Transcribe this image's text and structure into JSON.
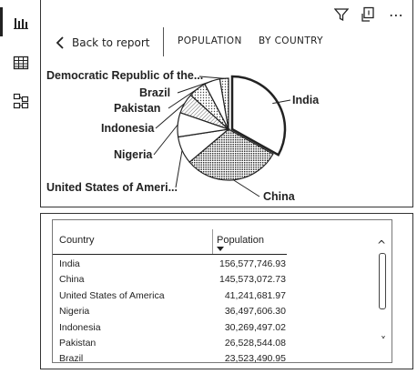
{
  "rail": {
    "items": [
      {
        "icon": "report-icon",
        "active": true
      },
      {
        "icon": "table-icon",
        "active": false
      },
      {
        "icon": "model-icon",
        "active": false
      }
    ]
  },
  "toolbar": {
    "icons": [
      "filter-icon",
      "focus-mode-icon",
      "more-options-icon"
    ],
    "more_label": "⋯"
  },
  "header": {
    "back_label": "Back to report",
    "tab_population": "POPULATION",
    "tab_by_country": "BY COUNTRY"
  },
  "chart_data": {
    "type": "pie",
    "categories": [
      "India",
      "China",
      "United States of America",
      "Nigeria",
      "Indonesia",
      "Pakistan",
      "Brazil",
      "Democratic Republic of the Congo"
    ],
    "values": [
      156577746.93,
      145573072.73,
      41241681.97,
      36497606.3,
      30269497.02,
      26528544.08,
      23523490.95,
      13000000
    ],
    "labels": [
      "India",
      "China",
      "United States of Ameri...",
      "Nigeria",
      "Indonesia",
      "Pakistan",
      "Brazil",
      "Democratic Republic of the..."
    ],
    "fills": [
      "#ffffff",
      "#222222",
      "#ffffff",
      "#ffffff",
      "#eeeeee",
      "#cccccc",
      "#ffffff",
      "#bbbbbb"
    ]
  },
  "table": {
    "headers": {
      "country": "Country",
      "population": "Population"
    },
    "rows": [
      {
        "country": "India",
        "population": "156,577,746.93"
      },
      {
        "country": "China",
        "population": "145,573,072.73"
      },
      {
        "country": "United States of America",
        "population": "41,241,681.97"
      },
      {
        "country": "Nigeria",
        "population": "36,497,606.30"
      },
      {
        "country": "Indonesia",
        "population": "30,269,497.02"
      },
      {
        "country": "Pakistan",
        "population": "26,528,544.08"
      },
      {
        "country": "Brazil",
        "population": "23,523,490.95"
      }
    ],
    "scroll_up": "^",
    "scroll_down": "˅"
  }
}
